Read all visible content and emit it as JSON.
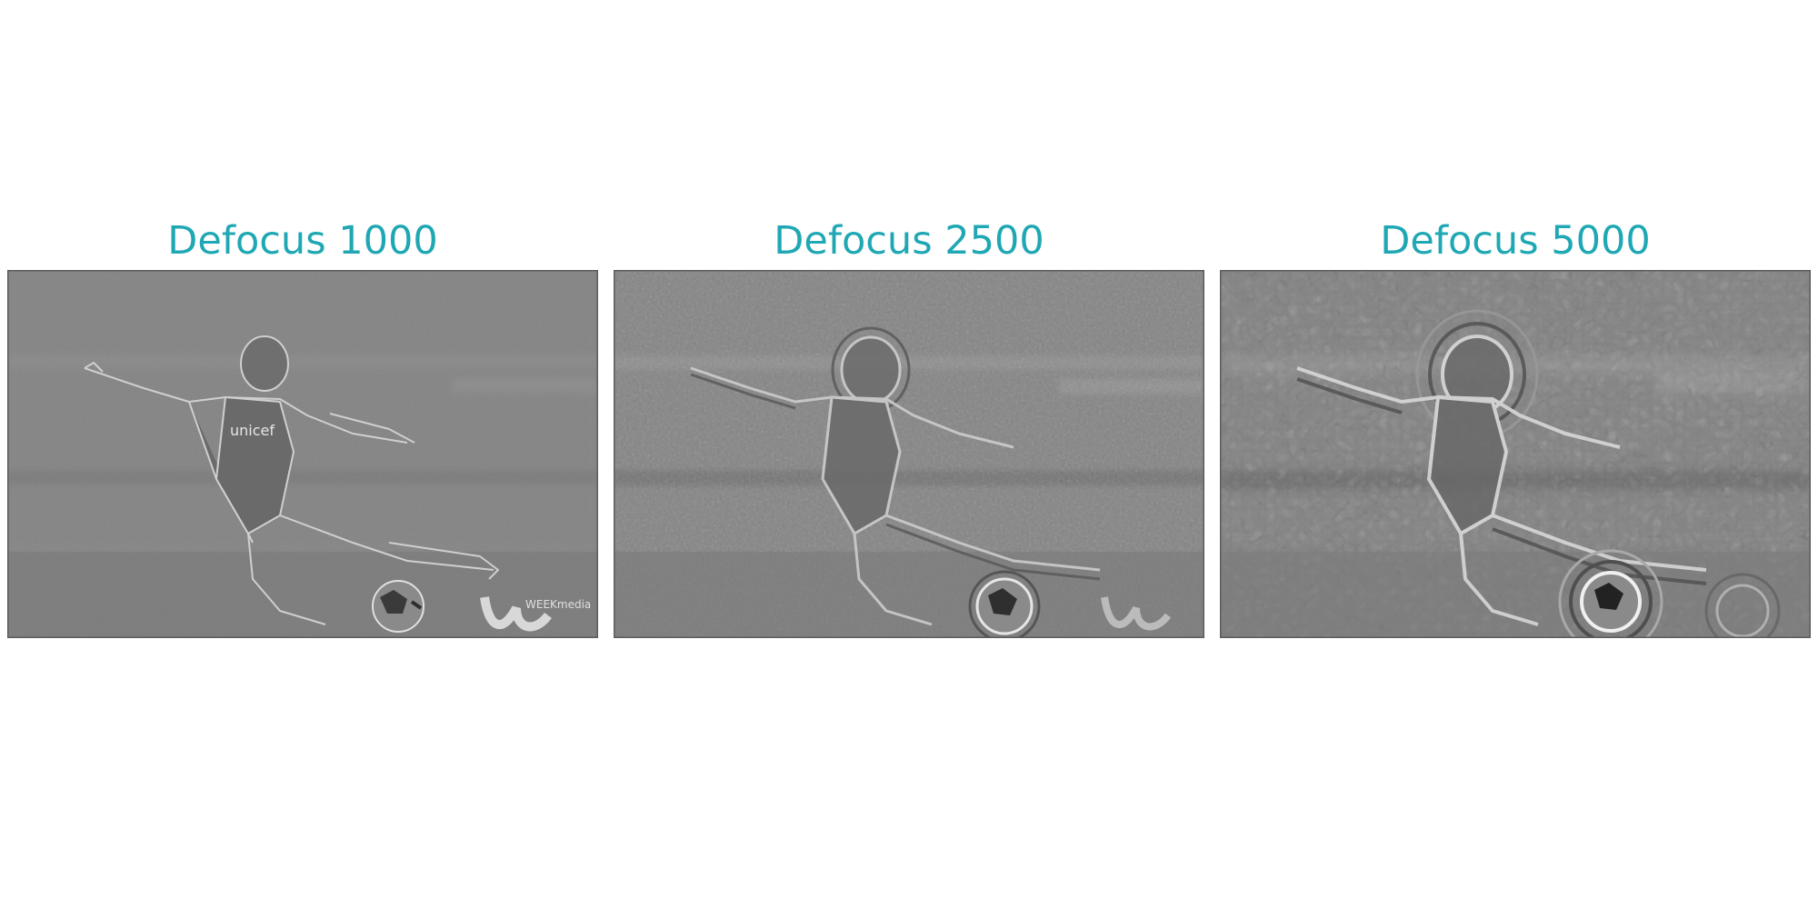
{
  "title_color": "#1fa8b4",
  "panels": [
    {
      "title": "Defocus 1000",
      "jersey_text": "unicef",
      "watermark": "WEEKmedia"
    },
    {
      "title": "Defocus 2500"
    },
    {
      "title": "Defocus 5000"
    }
  ]
}
